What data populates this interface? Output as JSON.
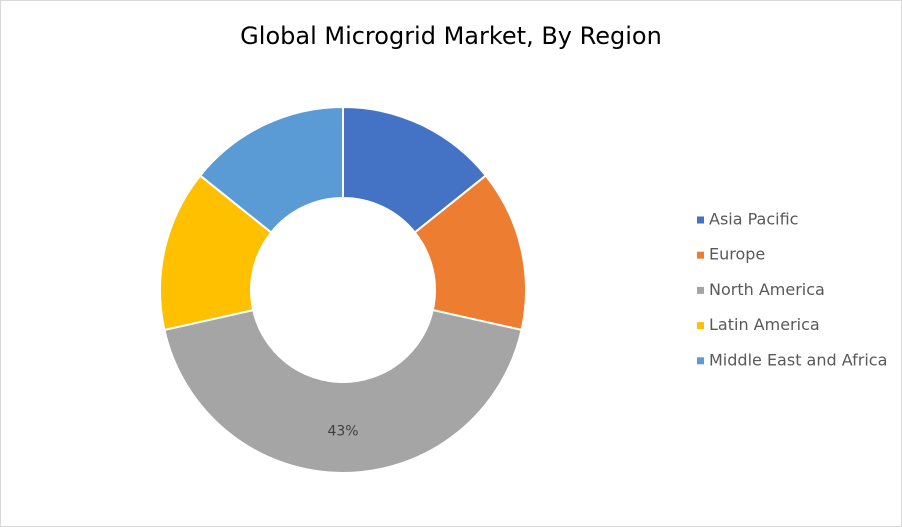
{
  "chart_data": {
    "type": "donut",
    "title": "Global Microgrid Market, By Region",
    "categories": [
      "Asia Pacific",
      "Europe",
      "North America",
      "Latin America",
      "Middle East and Africa"
    ],
    "values": [
      14.25,
      14.25,
      43,
      14.25,
      14.25
    ],
    "value_labels": [
      null,
      null,
      "43%",
      null,
      null
    ],
    "colors": [
      "#4472c4",
      "#ed7d31",
      "#a5a5a5",
      "#ffc000",
      "#5b9bd5"
    ],
    "legend": "right"
  }
}
